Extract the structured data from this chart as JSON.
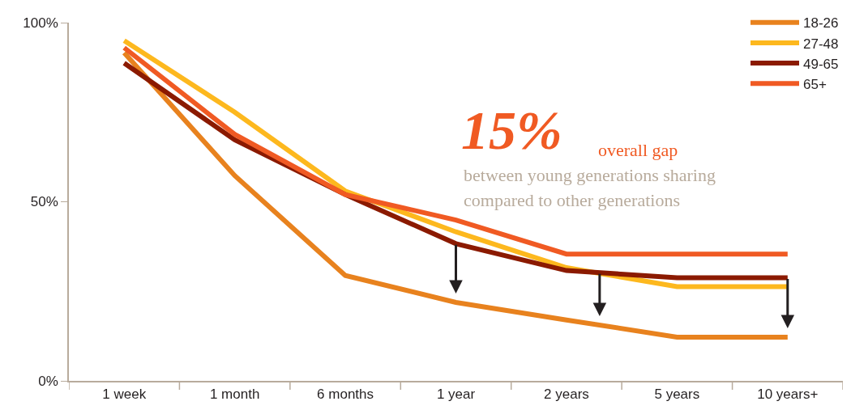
{
  "chart_data": {
    "type": "line",
    "categories": [
      "1 week",
      "1 month",
      "6 months",
      "1 year",
      "2 years",
      "5 years",
      "10 years+"
    ],
    "series": [
      {
        "name": "18-26",
        "color": "#e8821e",
        "values": [
          91.6,
          57.3,
          29.4,
          21.9,
          17,
          12.2,
          12.2
        ]
      },
      {
        "name": "27-48",
        "color": "#fdb81e",
        "values": [
          95,
          75,
          53,
          41.6,
          31.6,
          26.3,
          26.3
        ]
      },
      {
        "name": "49-65",
        "color": "#8b1a00",
        "values": [
          88.7,
          67.3,
          52,
          38.3,
          30.8,
          28.8,
          28.8
        ]
      },
      {
        "name": "65+",
        "color": "#f05a23",
        "values": [
          93,
          68.8,
          52,
          44.9,
          35.4,
          35.4,
          35.4
        ]
      }
    ],
    "ylim": [
      0,
      100
    ],
    "yticks": [
      {
        "value": 0,
        "label": "0%"
      },
      {
        "value": 50,
        "label": "50%"
      },
      {
        "value": 100,
        "label": "100%"
      }
    ],
    "annotations": [
      "15%",
      "overall gap",
      "between young generations sharing",
      "compared to other generations"
    ],
    "legend": "top right",
    "marker": "none",
    "line_style": "solid"
  }
}
